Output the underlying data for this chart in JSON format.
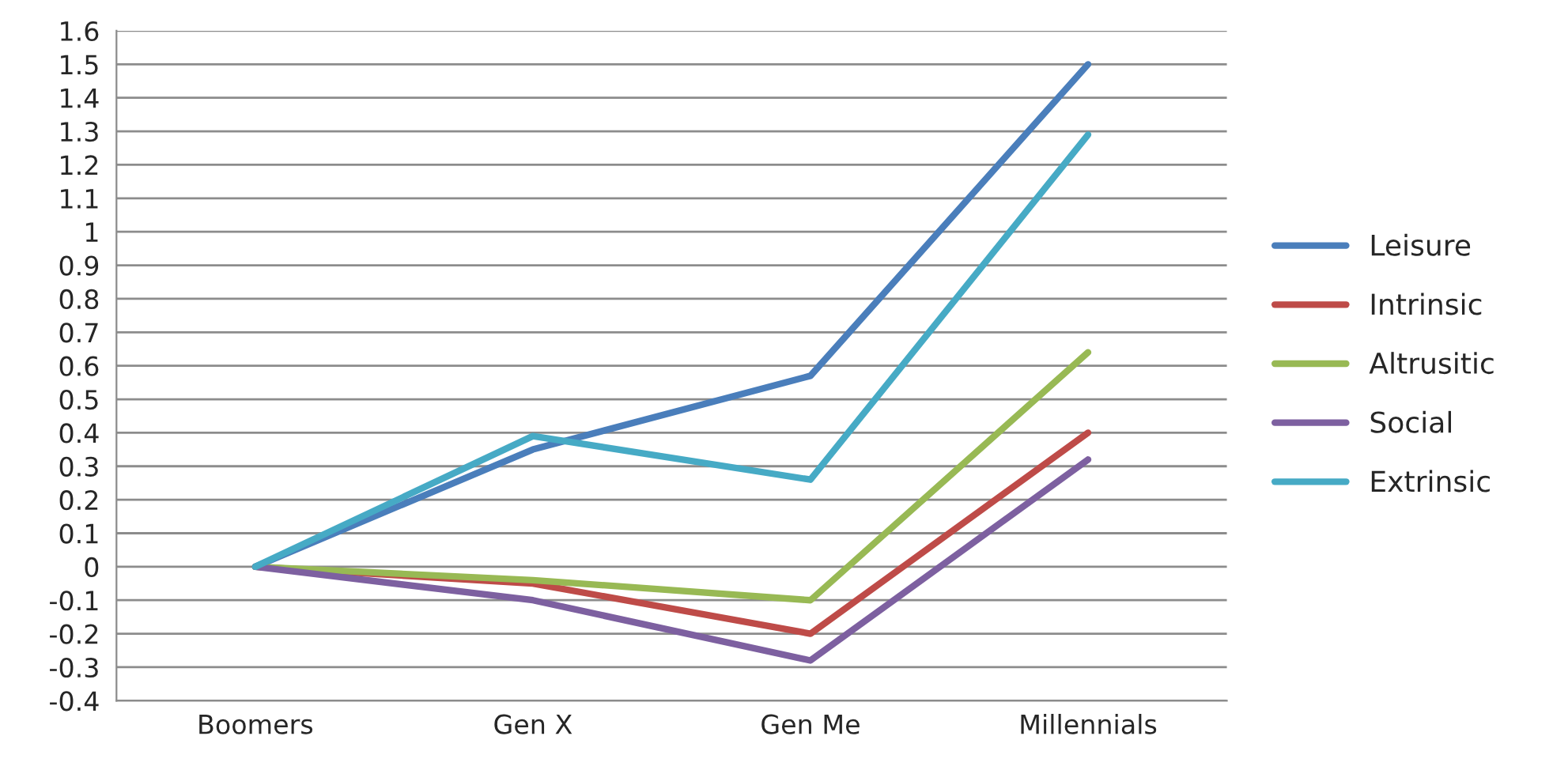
{
  "chart_data": {
    "type": "line",
    "categories": [
      "Boomers",
      "Gen X",
      "Gen Me",
      "Millennials"
    ],
    "series": [
      {
        "name": "Leisure",
        "color": "#4a7ebb",
        "values": [
          0,
          0.35,
          0.57,
          1.5
        ]
      },
      {
        "name": "Intrinsic",
        "color": "#be4b48",
        "values": [
          0,
          -0.05,
          -0.2,
          0.4
        ]
      },
      {
        "name": "Altrusitic",
        "color": "#98b954",
        "values": [
          0,
          -0.04,
          -0.1,
          0.64
        ]
      },
      {
        "name": "Social",
        "color": "#7d60a0",
        "values": [
          0,
          -0.1,
          -0.28,
          0.32
        ]
      },
      {
        "name": "Extrinsic",
        "color": "#46aac5",
        "values": [
          0,
          0.39,
          0.26,
          1.29
        ]
      }
    ],
    "ylim": [
      -0.4,
      1.6
    ],
    "yticks": [
      -0.4,
      -0.3,
      -0.2,
      -0.1,
      0,
      0.1,
      0.2,
      0.3,
      0.4,
      0.5,
      0.6,
      0.7,
      0.8,
      0.9,
      1,
      1.1,
      1.2,
      1.3,
      1.4,
      1.5,
      1.6
    ],
    "grid": "y",
    "legend": "right",
    "marker": "none",
    "line_style": "solid"
  }
}
